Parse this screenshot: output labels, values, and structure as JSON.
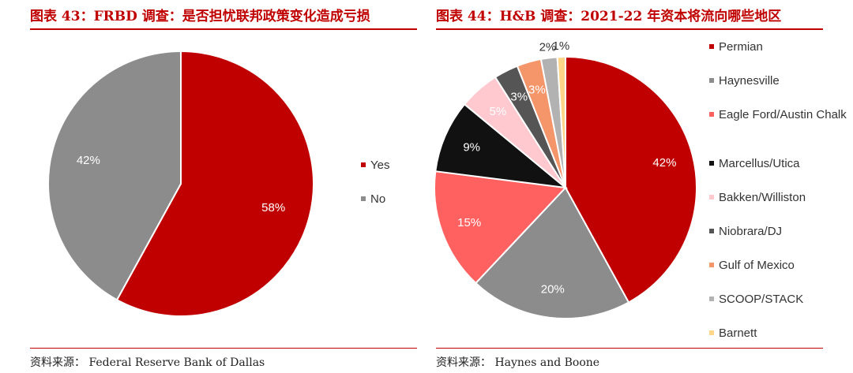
{
  "chart_data": [
    {
      "type": "pie",
      "title": "图表 43：FRBD 调查：是否担忧联邦政策变化造成亏损",
      "source": "资料来源：  Federal Reserve Bank of Dallas",
      "slices": [
        {
          "name": "Yes",
          "value": 58,
          "label": "58%",
          "color": "#c00000"
        },
        {
          "name": "No",
          "value": 42,
          "label": "42%",
          "color": "#8c8c8c"
        }
      ],
      "legend_position": "right"
    },
    {
      "type": "pie",
      "title": "图表 44：H&B 调查：2021-22 年资本将流向哪些地区",
      "source": "资料来源：  Haynes and Boone",
      "slices": [
        {
          "name": "Permian",
          "value": 42,
          "label": "42%",
          "color": "#c00000"
        },
        {
          "name": "Haynesville",
          "value": 20,
          "label": "20%",
          "color": "#8c8c8c"
        },
        {
          "name": "Eagle Ford/Austin Chalk",
          "value": 15,
          "label": "15%",
          "color": "#ff6161"
        },
        {
          "name": "Marcellus/Utica",
          "value": 9,
          "label": "9%",
          "color": "#111111"
        },
        {
          "name": "Bakken/Williston",
          "value": 5,
          "label": "5%",
          "color": "#ffc9cf"
        },
        {
          "name": "Niobrara/DJ",
          "value": 3,
          "label": "3%",
          "color": "#555555"
        },
        {
          "name": "Gulf of Mexico",
          "value": 3,
          "label": "3%",
          "color": "#f4956a"
        },
        {
          "name": "SCOOP/STACK",
          "value": 2,
          "label": "2%",
          "color": "#b2b2b2"
        },
        {
          "name": "Barnett",
          "value": 1,
          "label": "1%",
          "color": "#ffd58a"
        }
      ],
      "legend_position": "right"
    }
  ]
}
